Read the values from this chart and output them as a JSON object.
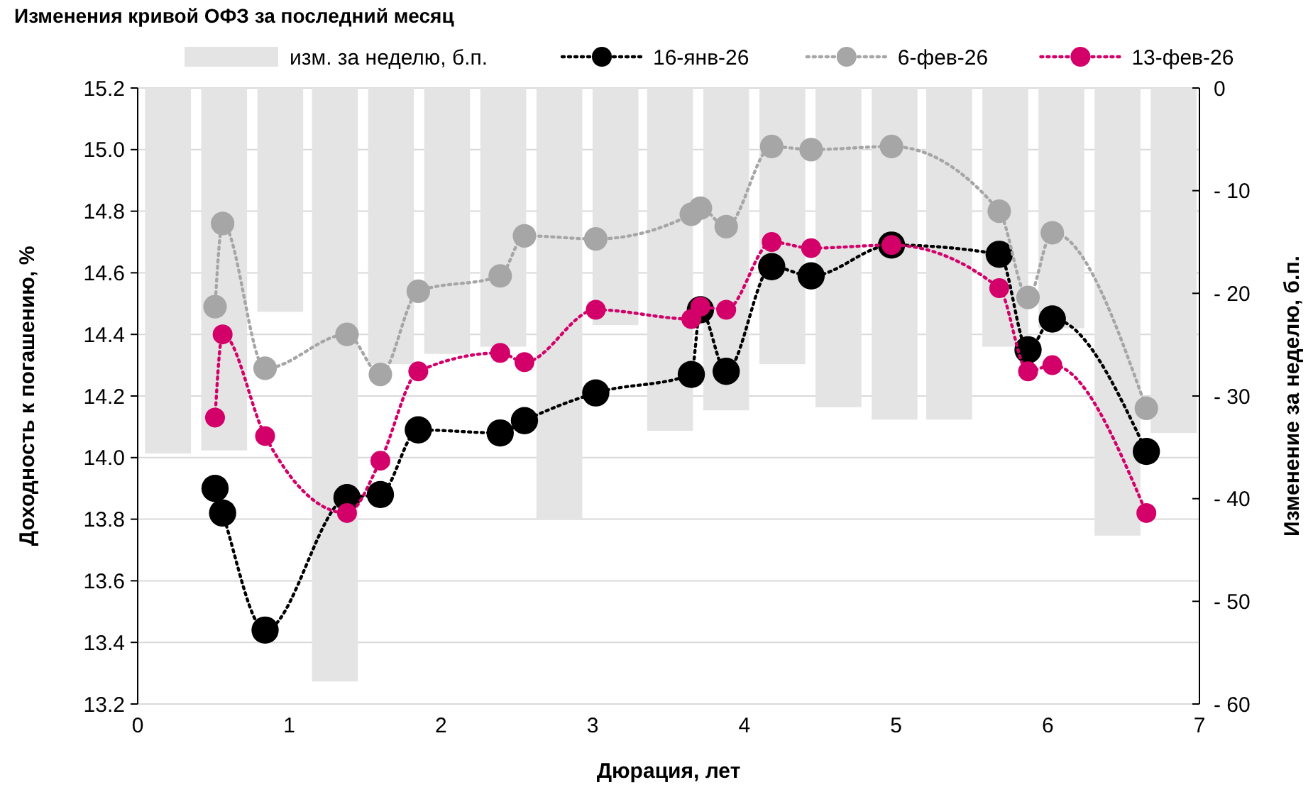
{
  "chart_data": {
    "type": "line",
    "title": "Изменения кривой ОФЗ за последний месяц",
    "xlabel": "Дюрация, лет",
    "ylabel": "Доходность к погашению, %",
    "y2label": "Изменение за неделю, б.п.",
    "xlim": [
      0,
      7
    ],
    "xticks": [
      0,
      1,
      2,
      3,
      4,
      5,
      6,
      7
    ],
    "ylim": [
      13.2,
      15.2
    ],
    "yticks": [
      13.2,
      13.4,
      13.6,
      13.8,
      {
        "value": 14,
        "label": "14.0"
      },
      14.2,
      14.4,
      14.6,
      14.8,
      {
        "value": 15,
        "label": "15.0"
      },
      15.2
    ],
    "y2lim": [
      -60,
      0
    ],
    "y2ticks": [
      {
        "value": -60,
        "label": "- 60"
      },
      {
        "value": -50,
        "label": "- 50"
      },
      {
        "value": -40,
        "label": "- 40"
      },
      {
        "value": -30,
        "label": "- 30"
      },
      {
        "value": -20,
        "label": "- 20"
      },
      {
        "value": -10,
        "label": "- 10"
      },
      0
    ],
    "grid": "y",
    "legend": "top",
    "marker": "circle",
    "line_style": "dotted",
    "series": [
      {
        "name": "изм. за неделю, б.п.",
        "type": "bar",
        "axis": "y2",
        "color": "#e4e4e4",
        "x": [
          0.2,
          0.57,
          0.94,
          1.3,
          1.67,
          2.04,
          2.41,
          2.78,
          3.15,
          3.51,
          3.88,
          4.25,
          4.62,
          4.99,
          5.35,
          5.72,
          6.09,
          6.46,
          6.83
        ],
        "values": [
          -35.6,
          -35.3,
          -21.8,
          -57.8,
          -26.9,
          -25.9,
          -25.2,
          -42,
          -23.1,
          -33.4,
          -31.4,
          -26.9,
          -31.1,
          -32.3,
          -32.3,
          -25.2,
          -23.4,
          -43.6,
          -33.6
        ]
      },
      {
        "name": "16-янв-26",
        "color": "#000000",
        "x": [
          0.51,
          0.56,
          0.84,
          1.38,
          1.6,
          1.85,
          2.39,
          2.55,
          3.02,
          3.65,
          3.71,
          3.88,
          4.18,
          4.44,
          4.97,
          5.68,
          5.87,
          6.03,
          6.65
        ],
        "values": [
          13.9,
          13.82,
          13.44,
          13.87,
          13.88,
          14.09,
          14.08,
          14.12,
          14.21,
          14.27,
          14.48,
          14.28,
          14.62,
          14.59,
          14.69,
          14.66,
          14.35,
          14.45,
          14.02
        ]
      },
      {
        "name": "6-фев-26",
        "color": "#a6a6a6",
        "x": [
          0.51,
          0.56,
          0.84,
          1.38,
          1.6,
          1.85,
          2.39,
          2.55,
          3.02,
          3.65,
          3.71,
          3.88,
          4.18,
          4.44,
          4.97,
          5.68,
          5.87,
          6.03,
          6.65
        ],
        "values": [
          14.49,
          14.76,
          14.29,
          14.4,
          14.27,
          14.54,
          14.59,
          14.72,
          14.71,
          14.79,
          14.81,
          14.75,
          15.01,
          15,
          15.01,
          14.8,
          14.52,
          14.73,
          14.16
        ]
      },
      {
        "name": "13-фев-26",
        "color": "#d4006a",
        "x": [
          0.51,
          0.56,
          0.84,
          1.38,
          1.6,
          1.85,
          2.39,
          2.55,
          3.02,
          3.65,
          3.71,
          3.88,
          4.18,
          4.44,
          4.97,
          5.68,
          5.87,
          6.03,
          6.65
        ],
        "values": [
          14.13,
          14.4,
          14.07,
          13.82,
          13.99,
          14.28,
          14.34,
          14.31,
          14.48,
          14.45,
          14.49,
          14.48,
          14.7,
          14.68,
          14.69,
          14.55,
          14.28,
          14.3,
          13.82
        ]
      }
    ]
  }
}
